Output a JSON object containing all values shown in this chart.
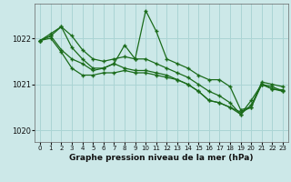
{
  "bg_color": "#cce8e8",
  "grid_color": "#aad4d4",
  "line_color": "#1a6b1a",
  "xlabel": "Graphe pression niveau de la mer (hPa)",
  "ylim": [
    1019.75,
    1022.75
  ],
  "xlim": [
    -0.5,
    23.5
  ],
  "yticks": [
    1020,
    1021,
    1022
  ],
  "xticks": [
    0,
    1,
    2,
    3,
    4,
    5,
    6,
    7,
    8,
    9,
    10,
    11,
    12,
    13,
    14,
    15,
    16,
    17,
    18,
    19,
    20,
    21,
    22,
    23
  ],
  "series": [
    [
      1021.95,
      1022.05,
      1022.25,
      1021.8,
      1021.55,
      1021.35,
      1021.35,
      1021.45,
      1021.85,
      1021.55,
      1022.6,
      1022.15,
      1021.55,
      1021.45,
      1021.35,
      1021.2,
      1021.1,
      1021.1,
      1020.95,
      1020.45,
      1020.5,
      1021.05,
      1021.0,
      1020.95
    ],
    [
      1021.95,
      1022.1,
      1022.25,
      1022.05,
      1021.75,
      1021.55,
      1021.5,
      1021.55,
      1021.6,
      1021.55,
      1021.55,
      1021.45,
      1021.35,
      1021.25,
      1021.15,
      1021.0,
      1020.85,
      1020.75,
      1020.6,
      1020.35,
      1020.65,
      1021.0,
      1020.95,
      1020.85
    ],
    [
      1021.95,
      1022.05,
      1021.75,
      1021.55,
      1021.45,
      1021.3,
      1021.35,
      1021.45,
      1021.35,
      1021.3,
      1021.3,
      1021.25,
      1021.2,
      1021.1,
      1021.0,
      1020.85,
      1020.65,
      1020.6,
      1020.5,
      1020.4,
      1020.5,
      1021.0,
      1020.9,
      1020.85
    ],
    [
      1021.95,
      1022.0,
      1021.7,
      1021.35,
      1021.2,
      1021.2,
      1021.25,
      1021.25,
      1021.3,
      1021.25,
      1021.25,
      1021.2,
      1021.15,
      1021.1,
      1021.0,
      1020.85,
      1020.65,
      1020.6,
      1020.5,
      1020.35,
      1020.55,
      1021.0,
      1020.9,
      1020.88
    ]
  ]
}
